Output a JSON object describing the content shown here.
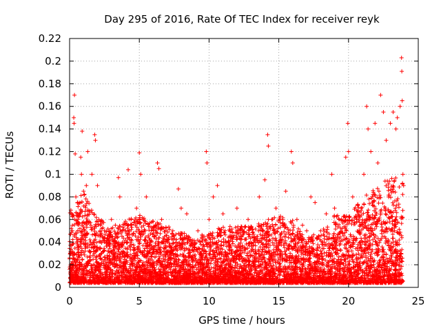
{
  "chart_data": {
    "type": "scatter",
    "title": "Day 295 of 2016, Rate Of TEC Index for receiver reyk",
    "xlabel": "GPS time / hours",
    "ylabel": "ROTI / TECUs",
    "xlim": [
      0,
      25
    ],
    "ylim": [
      0,
      0.22
    ],
    "x_ticks": [
      "0",
      "5",
      "10",
      "15",
      "20",
      "25"
    ],
    "y_ticks": [
      "0",
      "0.02",
      "0.04",
      "0.06",
      "0.08",
      "0.1",
      "0.12",
      "0.14",
      "0.16",
      "0.18",
      "0.2",
      "0.22"
    ],
    "grid": true,
    "marker": "+",
    "color": "#ff0000",
    "series": [
      {
        "name": "ROTI",
        "points": [
          [
            0.05,
            0.012
          ],
          [
            0.1,
            0.03
          ],
          [
            0.15,
            0.065
          ],
          [
            0.2,
            0.05
          ],
          [
            0.25,
            0.02
          ],
          [
            0.3,
            0.15
          ],
          [
            0.32,
            0.145
          ],
          [
            0.35,
            0.17
          ],
          [
            0.4,
            0.118
          ],
          [
            0.45,
            0.08
          ],
          [
            0.5,
            0.04
          ],
          [
            0.6,
            0.06
          ],
          [
            0.7,
            0.02
          ],
          [
            0.8,
            0.115
          ],
          [
            0.85,
            0.1
          ],
          [
            0.9,
            0.138
          ],
          [
            1.0,
            0.085
          ],
          [
            1.1,
            0.05
          ],
          [
            1.2,
            0.09
          ],
          [
            1.3,
            0.12
          ],
          [
            1.5,
            0.04
          ],
          [
            1.6,
            0.1
          ],
          [
            1.8,
            0.135
          ],
          [
            1.85,
            0.13
          ],
          [
            2.0,
            0.09
          ],
          [
            2.1,
            0.06
          ],
          [
            2.3,
            0.03
          ],
          [
            2.5,
            0.05
          ],
          [
            2.8,
            0.04
          ],
          [
            3.0,
            0.06
          ],
          [
            3.3,
            0.03
          ],
          [
            3.5,
            0.097
          ],
          [
            3.6,
            0.08
          ],
          [
            3.8,
            0.04
          ],
          [
            4.0,
            0.05
          ],
          [
            4.2,
            0.104
          ],
          [
            4.4,
            0.06
          ],
          [
            4.6,
            0.03
          ],
          [
            4.8,
            0.07
          ],
          [
            5.0,
            0.119
          ],
          [
            5.1,
            0.1
          ],
          [
            5.3,
            0.06
          ],
          [
            5.5,
            0.08
          ],
          [
            5.8,
            0.04
          ],
          [
            6.0,
            0.05
          ],
          [
            6.3,
            0.11
          ],
          [
            6.4,
            0.105
          ],
          [
            6.6,
            0.06
          ],
          [
            7.0,
            0.04
          ],
          [
            7.4,
            0.05
          ],
          [
            7.8,
            0.087
          ],
          [
            8.0,
            0.07
          ],
          [
            8.4,
            0.065
          ],
          [
            8.8,
            0.04
          ],
          [
            9.2,
            0.05
          ],
          [
            9.6,
            0.03
          ],
          [
            9.8,
            0.12
          ],
          [
            9.85,
            0.11
          ],
          [
            10.0,
            0.06
          ],
          [
            10.3,
            0.08
          ],
          [
            10.6,
            0.09
          ],
          [
            11.0,
            0.065
          ],
          [
            11.5,
            0.05
          ],
          [
            12.0,
            0.07
          ],
          [
            12.4,
            0.05
          ],
          [
            12.8,
            0.06
          ],
          [
            13.2,
            0.04
          ],
          [
            13.6,
            0.08
          ],
          [
            14.0,
            0.095
          ],
          [
            14.2,
            0.135
          ],
          [
            14.25,
            0.125
          ],
          [
            14.5,
            0.06
          ],
          [
            14.8,
            0.07
          ],
          [
            15.1,
            0.06
          ],
          [
            15.5,
            0.085
          ],
          [
            15.9,
            0.12
          ],
          [
            16.0,
            0.11
          ],
          [
            16.3,
            0.06
          ],
          [
            16.7,
            0.055
          ],
          [
            17.0,
            0.05
          ],
          [
            17.3,
            0.08
          ],
          [
            17.6,
            0.075
          ],
          [
            18.0,
            0.05
          ],
          [
            18.4,
            0.065
          ],
          [
            18.8,
            0.1
          ],
          [
            19.0,
            0.07
          ],
          [
            19.5,
            0.06
          ],
          [
            19.8,
            0.115
          ],
          [
            19.95,
            0.145
          ],
          [
            20.0,
            0.12
          ],
          [
            20.3,
            0.08
          ],
          [
            20.6,
            0.06
          ],
          [
            20.9,
            0.07
          ],
          [
            21.1,
            0.1
          ],
          [
            21.3,
            0.16
          ],
          [
            21.4,
            0.14
          ],
          [
            21.6,
            0.12
          ],
          [
            21.9,
            0.145
          ],
          [
            22.1,
            0.11
          ],
          [
            22.3,
            0.17
          ],
          [
            22.5,
            0.155
          ],
          [
            22.7,
            0.13
          ],
          [
            23.0,
            0.145
          ],
          [
            23.2,
            0.155
          ],
          [
            23.4,
            0.14
          ],
          [
            23.5,
            0.15
          ],
          [
            23.7,
            0.16
          ],
          [
            23.8,
            0.203
          ],
          [
            23.82,
            0.191
          ],
          [
            23.85,
            0.165
          ],
          [
            23.9,
            0.1
          ],
          [
            23.95,
            0.09
          ]
        ],
        "density_curve": {
          "x": [
            0,
            1,
            2,
            3,
            4,
            5,
            6,
            7,
            8,
            9,
            10,
            11,
            12,
            13,
            14,
            15,
            16,
            17,
            18,
            19,
            20,
            21,
            22,
            23,
            23.9
          ],
          "ymax": [
            0.065,
            0.08,
            0.06,
            0.05,
            0.055,
            0.06,
            0.055,
            0.05,
            0.045,
            0.04,
            0.045,
            0.05,
            0.05,
            0.05,
            0.055,
            0.06,
            0.055,
            0.04,
            0.045,
            0.06,
            0.06,
            0.075,
            0.085,
            0.095,
            0.09
          ]
        }
      }
    ]
  }
}
